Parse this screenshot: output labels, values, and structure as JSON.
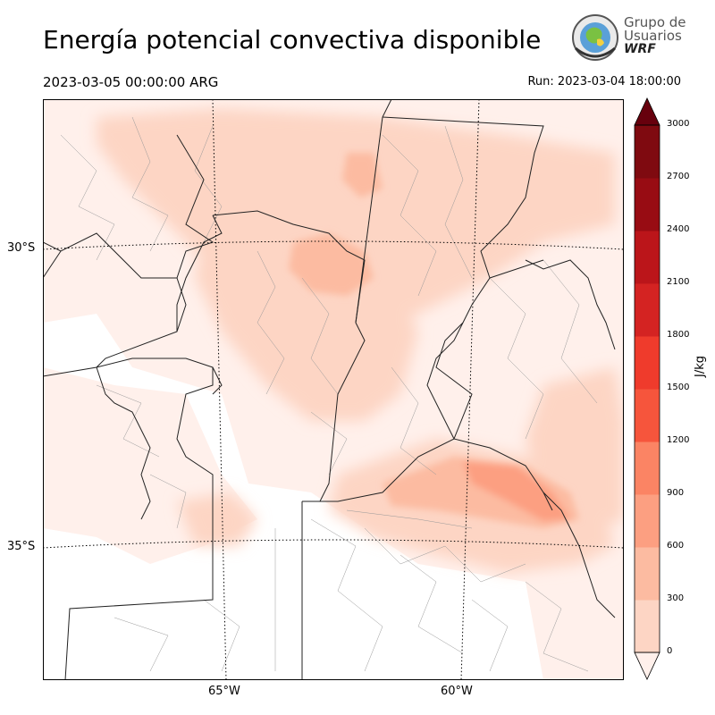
{
  "header": {
    "title": "Energía potencial convectiva disponible",
    "valid_time": "2023-03-05 00:00:00 ARG",
    "run_time": "Run: 2023-03-04 18:00:00"
  },
  "logo": {
    "line1": "Grupo de",
    "line2": "Usuarios",
    "line3": "WRF"
  },
  "map": {
    "lat_labels": [
      "30°S",
      "35°S"
    ],
    "lon_labels": [
      "65°W",
      "60°W"
    ]
  },
  "colorbar": {
    "unit": "J/kg",
    "ticks": [
      "0",
      "300",
      "600",
      "900",
      "1200",
      "1500",
      "1800",
      "2100",
      "2400",
      "2700",
      "3000"
    ],
    "colors": [
      "#fff0eb",
      "#fdd5c4",
      "#fcbba1",
      "#fc9f81",
      "#fb8464",
      "#f6553c",
      "#ef3b2c",
      "#d42322",
      "#bb151a",
      "#980c13",
      "#7f0a10"
    ],
    "extend_color": "#67000d"
  }
}
